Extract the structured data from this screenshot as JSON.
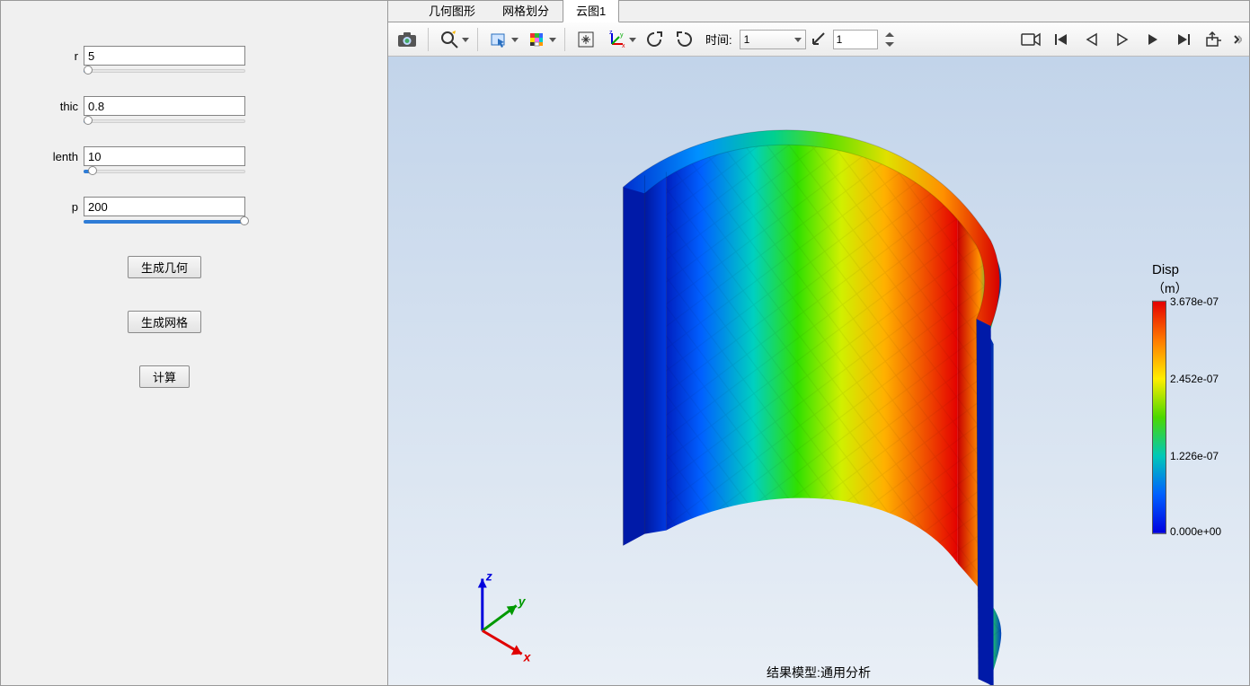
{
  "sidebar": {
    "params": [
      {
        "label": "r",
        "value": "5",
        "slider_pct": 2
      },
      {
        "label": "thic",
        "value": "0.8",
        "slider_pct": 2
      },
      {
        "label": "lenth",
        "value": "10",
        "slider_pct": 5
      },
      {
        "label": "p",
        "value": "200",
        "slider_pct": 100
      }
    ],
    "buttons": {
      "generate_geometry": "生成几何",
      "generate_mesh": "生成网格",
      "compute": "计算"
    }
  },
  "tabs": {
    "items": [
      "几何图形",
      "网格划分",
      "云图1"
    ],
    "active_index": 2
  },
  "toolbar": {
    "time_label": "时间:",
    "time_select_value": "1",
    "scale_input_value": "1"
  },
  "viewport": {
    "background_top": "#c2d4ea",
    "background_bottom": "#e9eff6",
    "axes": {
      "x_label": "x",
      "x_color": "#e00000",
      "y_label": "y",
      "y_color": "#009900",
      "z_label": "z",
      "z_color": "#0000dd"
    },
    "status_text": "结果模型:通用分析"
  },
  "legend": {
    "title": "Disp",
    "unit": "（m）",
    "max": "3.678e-07",
    "t2": "2.452e-07",
    "t1": "1.226e-07",
    "min": "0.000e+00",
    "gradient_stops": [
      "#e40000",
      "#ff7a00",
      "#ffee00",
      "#4cd800",
      "#00c8b8",
      "#0060ff",
      "#0000e0"
    ]
  }
}
